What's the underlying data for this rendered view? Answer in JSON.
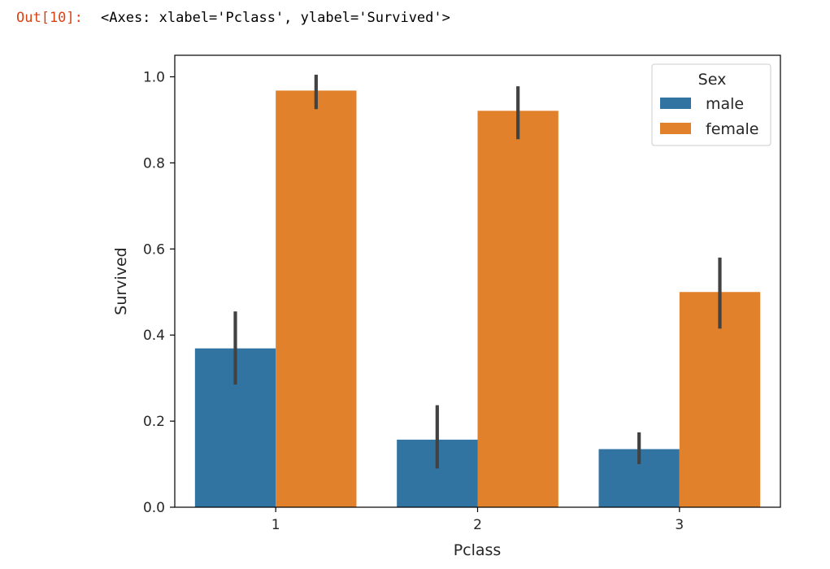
{
  "cell": {
    "prompt": "Out[10]:",
    "repr": "<Axes: xlabel='Pclass', ylabel='Survived'>"
  },
  "chart_data": {
    "type": "bar",
    "xlabel": "Pclass",
    "ylabel": "Survived",
    "ylim": [
      0,
      1.05
    ],
    "categories": [
      "1",
      "2",
      "3"
    ],
    "yticks": [
      "0.0",
      "0.2",
      "0.4",
      "0.6",
      "0.8",
      "1.0"
    ],
    "ytick_values": [
      0,
      0.2,
      0.4,
      0.6,
      0.8,
      1.0
    ],
    "legend": {
      "title": "Sex",
      "placement": "upper-right"
    },
    "series": [
      {
        "name": "male",
        "color": "#3274a1",
        "values": [
          0.369,
          0.157,
          0.135
        ],
        "ci_low": [
          0.285,
          0.09,
          0.1
        ],
        "ci_high": [
          0.455,
          0.237,
          0.174
        ]
      },
      {
        "name": "female",
        "color": "#e1812c",
        "values": [
          0.968,
          0.921,
          0.5
        ],
        "ci_low": [
          0.925,
          0.855,
          0.415
        ],
        "ci_high": [
          1.005,
          0.978,
          0.58
        ]
      }
    ],
    "errorbar_color": "#424242"
  }
}
